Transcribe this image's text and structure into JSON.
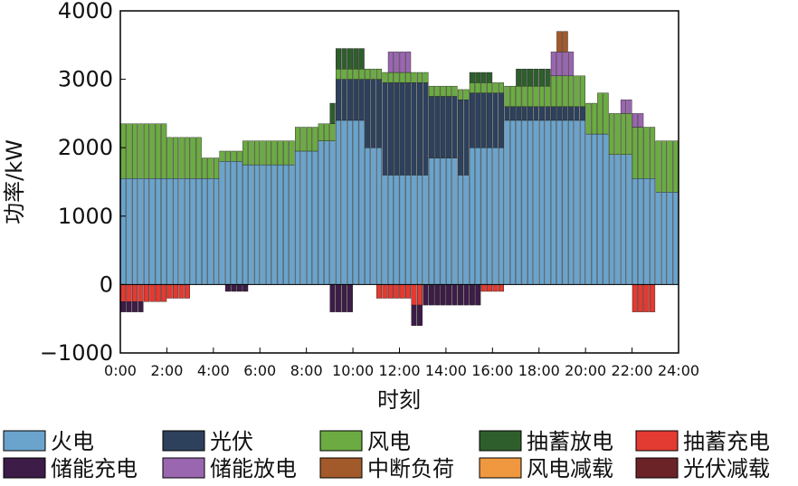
{
  "chart_data": {
    "type": "bar",
    "stacked": true,
    "title": "",
    "xlabel": "时刻",
    "ylabel": "功率/kW",
    "ylim": [
      -1000,
      4000
    ],
    "y_ticks": [
      4000,
      3000,
      2000,
      1000,
      0,
      -1000
    ],
    "y_tick_labels": [
      "4000",
      "3000",
      "2000",
      "1000",
      "0",
      "−1000"
    ],
    "x_tick_labels": [
      "0:00",
      "2:00",
      "4:00",
      "6:00",
      "8:00",
      "10:00",
      "12:00",
      "14:00",
      "16:00",
      "18:00",
      "20:00",
      "22:00",
      "24:00"
    ],
    "x_range_hours": [
      0,
      24
    ],
    "x_step_hours": 0.25,
    "grid": false,
    "legend_placement": "bottom",
    "colors": {
      "thermal": "#6aa4cc",
      "pv": "#2e415c",
      "wind": "#6cab42",
      "pumped_discharge": "#2f5e2d",
      "pumped_charge": "#e33a31",
      "storage_charge": "#3d1c47",
      "storage_discharge": "#9a66b0",
      "interruptible_load": "#a35a2a",
      "wind_curtail": "#f09840",
      "pv_curtail": "#6b2328"
    },
    "legend": [
      {
        "key": "thermal",
        "label": "火电"
      },
      {
        "key": "pv",
        "label": "光伏"
      },
      {
        "key": "wind",
        "label": "风电"
      },
      {
        "key": "pumped_discharge",
        "label": "抽蓄放电"
      },
      {
        "key": "pumped_charge",
        "label": "抽蓄充电"
      },
      {
        "key": "storage_charge",
        "label": "储能充电"
      },
      {
        "key": "storage_discharge",
        "label": "储能放电"
      },
      {
        "key": "interruptible_load",
        "label": "中断负荷"
      },
      {
        "key": "wind_curtail",
        "label": "风电减载"
      },
      {
        "key": "pv_curtail",
        "label": "光伏减载"
      }
    ],
    "thermal_profile": [
      {
        "from": 0,
        "to": 4.25,
        "value": 1550
      },
      {
        "from": 4.25,
        "to": 5.25,
        "value": 1800
      },
      {
        "from": 5.25,
        "to": 7.5,
        "value": 1750
      },
      {
        "from": 7.5,
        "to": 8.5,
        "value": 1950
      },
      {
        "from": 8.5,
        "to": 9.25,
        "value": 2100
      },
      {
        "from": 9.25,
        "to": 10.5,
        "value": 2400
      },
      {
        "from": 10.5,
        "to": 11.25,
        "value": 2000
      },
      {
        "from": 11.25,
        "to": 13.25,
        "value": 1600
      },
      {
        "from": 13.25,
        "to": 14.5,
        "value": 1850
      },
      {
        "from": 14.5,
        "to": 15.0,
        "value": 1600
      },
      {
        "from": 15.0,
        "to": 16.5,
        "value": 2000
      },
      {
        "from": 16.5,
        "to": 20.0,
        "value": 2400
      },
      {
        "from": 20.0,
        "to": 21.0,
        "value": 2200
      },
      {
        "from": 21.0,
        "to": 22.0,
        "value": 1900
      },
      {
        "from": 22.0,
        "to": 23.0,
        "value": 1550
      },
      {
        "from": 23.0,
        "to": 24.0,
        "value": 1350
      }
    ],
    "pv_profile": [
      {
        "from": 0,
        "to": 9.25,
        "value": 0
      },
      {
        "from": 9.25,
        "to": 10.5,
        "value": 600
      },
      {
        "from": 10.5,
        "to": 11.25,
        "value": 1000
      },
      {
        "from": 11.25,
        "to": 13.25,
        "value": 1350
      },
      {
        "from": 13.25,
        "to": 14.5,
        "value": 900
      },
      {
        "from": 14.5,
        "to": 15.0,
        "value": 1100
      },
      {
        "from": 15.0,
        "to": 16.5,
        "value": 800
      },
      {
        "from": 16.5,
        "to": 20.0,
        "value": 200
      },
      {
        "from": 20.0,
        "to": 24.0,
        "value": 0
      }
    ],
    "wind_profile": [
      {
        "from": 0,
        "to": 2.0,
        "value": 800
      },
      {
        "from": 2.0,
        "to": 3.5,
        "value": 600
      },
      {
        "from": 3.5,
        "to": 4.25,
        "value": 300
      },
      {
        "from": 4.25,
        "to": 5.25,
        "value": 150
      },
      {
        "from": 5.25,
        "to": 8.5,
        "value": 350
      },
      {
        "from": 8.5,
        "to": 9.25,
        "value": 250
      },
      {
        "from": 9.25,
        "to": 16.5,
        "value": 150
      },
      {
        "from": 16.5,
        "to": 18.5,
        "value": 300
      },
      {
        "from": 18.5,
        "to": 20.5,
        "value": 450
      },
      {
        "from": 20.5,
        "to": 22.0,
        "value": 600
      },
      {
        "from": 22.0,
        "to": 24.0,
        "value": 750
      }
    ],
    "pumped_discharge_profile": [
      {
        "from": 9.0,
        "to": 10.5,
        "value": 300
      },
      {
        "from": 15.0,
        "to": 16.0,
        "value": 150
      },
      {
        "from": 17.0,
        "to": 18.5,
        "value": 250
      }
    ],
    "storage_discharge_profile": [
      {
        "from": 11.5,
        "to": 12.5,
        "value": 300
      },
      {
        "from": 18.5,
        "to": 19.5,
        "value": 350
      },
      {
        "from": 21.5,
        "to": 22.5,
        "value": 200
      }
    ],
    "interruptible_load_profile": [
      {
        "from": 18.75,
        "to": 19.25,
        "value": 300
      }
    ],
    "pumped_charge_profile": [
      {
        "from": 0,
        "to": 2.0,
        "value": -250
      },
      {
        "from": 2.0,
        "to": 3.0,
        "value": -200
      },
      {
        "from": 11.0,
        "to": 12.5,
        "value": -200
      },
      {
        "from": 12.5,
        "to": 13.0,
        "value": -300
      },
      {
        "from": 15.5,
        "to": 16.5,
        "value": -100
      },
      {
        "from": 22.0,
        "to": 23.0,
        "value": -400
      }
    ],
    "storage_charge_profile": [
      {
        "from": 0,
        "to": 1.0,
        "value": -150
      },
      {
        "from": 4.5,
        "to": 5.5,
        "value": -100
      },
      {
        "from": 9.0,
        "to": 10.0,
        "value": -400
      },
      {
        "from": 12.5,
        "to": 13.5,
        "value": -300
      },
      {
        "from": 13.5,
        "to": 15.5,
        "value": -300
      }
    ]
  }
}
